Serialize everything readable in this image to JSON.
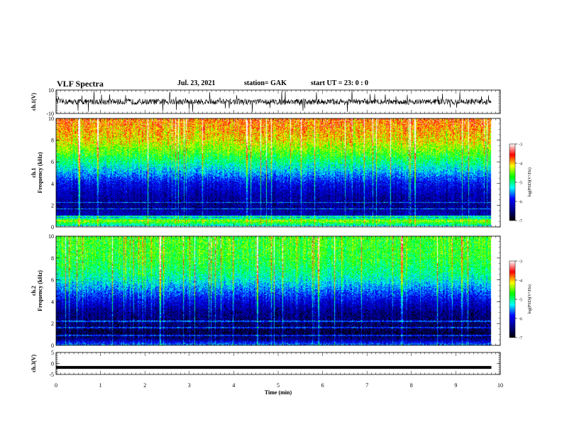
{
  "header": {
    "title": "VLF Spectra",
    "date": "Jul. 23, 2021",
    "station": "station= GAK",
    "start": "start  UT =   23: 0  : 0"
  },
  "chart_data": [
    {
      "type": "line",
      "panel": "ch1-waveform",
      "ylabel": "ch.1(V)",
      "ylim": [
        -10,
        10
      ],
      "yticks": [
        "10",
        "-10"
      ],
      "xlim": [
        0,
        10
      ],
      "description_values": {
        "baseline_mean_V": 0,
        "typical_amplitude_V": 2.5,
        "spike_amplitude_V": 10,
        "data_end_min": 9.8
      }
    },
    {
      "type": "heatmap",
      "panel": "ch1-spectrogram",
      "ylabel_top": "ch.1",
      "ylabel": "Frequency (kHz)",
      "ylim": [
        0,
        10
      ],
      "yticks": [
        "0",
        "2",
        "4",
        "6",
        "8",
        "10"
      ],
      "xlim": [
        0,
        10
      ],
      "data_end_min": 9.8,
      "colorbar": {
        "label": "log(PSD)(V²/Hz)",
        "range": [
          -7,
          -3
        ],
        "ticks": [
          "-3",
          "-4",
          "-5",
          "-6",
          "-7"
        ],
        "colors": [
          "#000000",
          "#00008b",
          "#0000ff",
          "#00ffff",
          "#00ff00",
          "#ffff00",
          "#ff0000",
          "#ffffff"
        ]
      },
      "profile_logpsd_by_freq_kHz": [
        [
          0,
          -5.2
        ],
        [
          0.5,
          -4.2
        ],
        [
          1,
          -6.3
        ],
        [
          2,
          -6.5
        ],
        [
          3,
          -6.3
        ],
        [
          4,
          -6.0
        ],
        [
          5,
          -5.4
        ],
        [
          6,
          -4.9
        ],
        [
          7,
          -4.4
        ],
        [
          8,
          -4.0
        ],
        [
          10,
          -3.6
        ]
      ]
    },
    {
      "type": "heatmap",
      "panel": "ch2-spectrogram",
      "ylabel_top": "ch.2",
      "ylabel": "Frequency (kHz)",
      "ylim": [
        0,
        10
      ],
      "yticks": [
        "0",
        "2",
        "4",
        "6",
        "8",
        "10"
      ],
      "xlim": [
        0,
        10
      ],
      "data_end_min": 9.8,
      "colorbar": {
        "label": "log(PSD)(V²/Hz)",
        "range": [
          -7,
          -3
        ],
        "ticks": [
          "-3",
          "-4",
          "-5",
          "-6",
          "-7"
        ],
        "colors": [
          "#000000",
          "#00008b",
          "#0000ff",
          "#00ffff",
          "#00ff00",
          "#ffff00",
          "#ff0000",
          "#ffffff"
        ]
      },
      "profile_logpsd_by_freq_kHz": [
        [
          0,
          -5.5
        ],
        [
          0.5,
          -6.5
        ],
        [
          1,
          -6.8
        ],
        [
          2,
          -6.6
        ],
        [
          3,
          -6.5
        ],
        [
          4,
          -6.1
        ],
        [
          5,
          -5.6
        ],
        [
          6,
          -5.1
        ],
        [
          7,
          -4.8
        ],
        [
          8,
          -4.6
        ],
        [
          10,
          -4.5
        ]
      ]
    },
    {
      "type": "line",
      "panel": "ch3-waveform",
      "ylabel": "ch.3(V)",
      "ylim": [
        -5,
        5
      ],
      "yticks": [
        "5",
        "0",
        "-5"
      ],
      "xlim": [
        0,
        10
      ],
      "xlabel": "Time (min)",
      "xticks": [
        "0",
        "1",
        "2",
        "3",
        "4",
        "5",
        "6",
        "7",
        "8",
        "9",
        "10"
      ],
      "description_values": {
        "constant_value_V": -1.8,
        "data_end_min": 9.8
      }
    }
  ]
}
